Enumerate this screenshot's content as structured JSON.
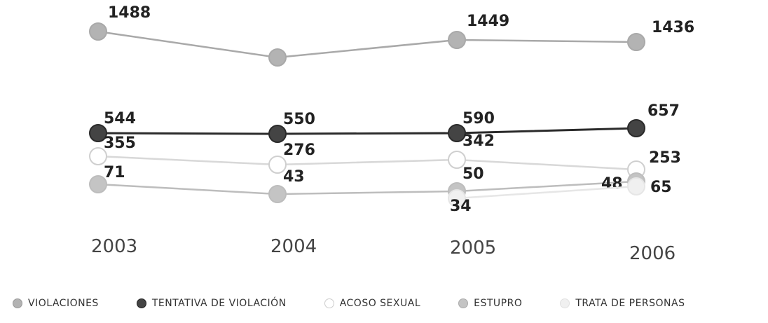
{
  "chart_data": {
    "type": "line",
    "x": [
      "2003",
      "2004",
      "2005",
      "2006"
    ],
    "series": [
      {
        "name": "VIOLACIONES",
        "values": [
          1488,
          null,
          1449,
          1436
        ],
        "color": "#a9a9a9",
        "fill": "#b3b3b3",
        "labels": [
          "1488",
          "",
          "1449",
          "1436"
        ]
      },
      {
        "name": "TENTATIVA DE VIOLACIÓN",
        "values": [
          544,
          550,
          590,
          657
        ],
        "color": "#2a2a2a",
        "fill": "#444444",
        "labels": [
          "544",
          "550",
          "590",
          "657"
        ]
      },
      {
        "name": "ACOSO SEXUAL",
        "values": [
          355,
          276,
          342,
          253
        ],
        "color": "#d8d8d8",
        "fill": "#ffffff",
        "labels": [
          "355",
          "276",
          "342",
          "253"
        ]
      },
      {
        "name": "ESTUPRO",
        "values": [
          71,
          43,
          50,
          48
        ],
        "color": "#bdbdbd",
        "fill": "#c4c4c4",
        "labels": [
          "71",
          "43",
          "50",
          "48"
        ]
      },
      {
        "name": "TRATA DE PERSONAS",
        "values": [
          null,
          null,
          34,
          65
        ],
        "color": "#e6e6e6",
        "fill": "#f0f0f0",
        "labels": [
          "",
          "",
          "34",
          "65"
        ]
      }
    ],
    "legend_position": "bottom"
  }
}
